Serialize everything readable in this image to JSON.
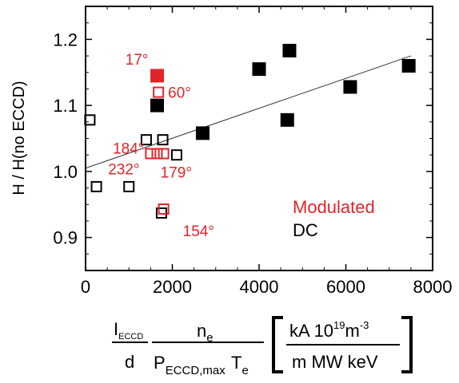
{
  "chart_data": {
    "type": "scatter",
    "xlim": [
      0,
      8000
    ],
    "ylim": [
      0.85,
      1.25
    ],
    "x_ticks": [
      0,
      2000,
      4000,
      6000,
      8000
    ],
    "y_ticks": [
      0.9,
      1.0,
      1.1,
      1.2
    ],
    "x_tick_labels": [
      "0",
      "2000",
      "4000",
      "6000",
      "8000"
    ],
    "y_tick_labels": [
      "0.9",
      "1.0",
      "1.1",
      "1.2"
    ],
    "ylabel": "H / H(no ECCD)",
    "xlabel": {
      "i_eccd": "I",
      "i_eccd_sub": "ECCD",
      "d": "d",
      "n_e": "n",
      "n_e_sub": "e",
      "p": "P",
      "p_sub": "ECCD,max",
      "t": "T",
      "t_sub": "e",
      "units_num": "kA 10",
      "units_exp": "19",
      "units_m": "m",
      "units_m_exp": "-3",
      "units_den": "m MW keV"
    },
    "fit_line": {
      "x": [
        0,
        7500
      ],
      "y": [
        1.005,
        1.175
      ]
    },
    "series": [
      {
        "name": "Modulated",
        "color": "#e0252a",
        "points": [
          {
            "x": 1650,
            "y": 1.145,
            "filled": true,
            "label": "17°"
          },
          {
            "x": 1680,
            "y": 1.12,
            "filled": false,
            "label": "60°"
          },
          {
            "x": 1500,
            "y": 1.027,
            "filled": false,
            "label": "184°"
          },
          {
            "x": 1650,
            "y": 1.027,
            "filled": false,
            "label": "232°"
          },
          {
            "x": 1800,
            "y": 1.027,
            "filled": false,
            "label": "179°"
          },
          {
            "x": 1800,
            "y": 0.943,
            "filled": false,
            "label": "154°"
          }
        ]
      },
      {
        "name": "DC",
        "color": "#000000",
        "points": [
          {
            "x": 100,
            "y": 1.078,
            "filled": false
          },
          {
            "x": 250,
            "y": 0.977,
            "filled": false
          },
          {
            "x": 1000,
            "y": 0.977,
            "filled": false
          },
          {
            "x": 1400,
            "y": 1.048,
            "filled": false
          },
          {
            "x": 1780,
            "y": 1.048,
            "filled": false
          },
          {
            "x": 2100,
            "y": 1.025,
            "filled": false
          },
          {
            "x": 1750,
            "y": 0.937,
            "filled": false
          },
          {
            "x": 1650,
            "y": 1.1,
            "filled": true
          },
          {
            "x": 2700,
            "y": 1.058,
            "filled": true
          },
          {
            "x": 4000,
            "y": 1.155,
            "filled": true
          },
          {
            "x": 4700,
            "y": 1.183,
            "filled": true
          },
          {
            "x": 4650,
            "y": 1.078,
            "filled": true
          },
          {
            "x": 6100,
            "y": 1.128,
            "filled": true
          },
          {
            "x": 7450,
            "y": 1.16,
            "filled": true
          }
        ]
      }
    ],
    "legend": {
      "placement": "bottom-right",
      "entries": [
        {
          "text": "Modulated",
          "color": "#e0252a"
        },
        {
          "text": "DC",
          "color": "#000000"
        }
      ]
    }
  }
}
